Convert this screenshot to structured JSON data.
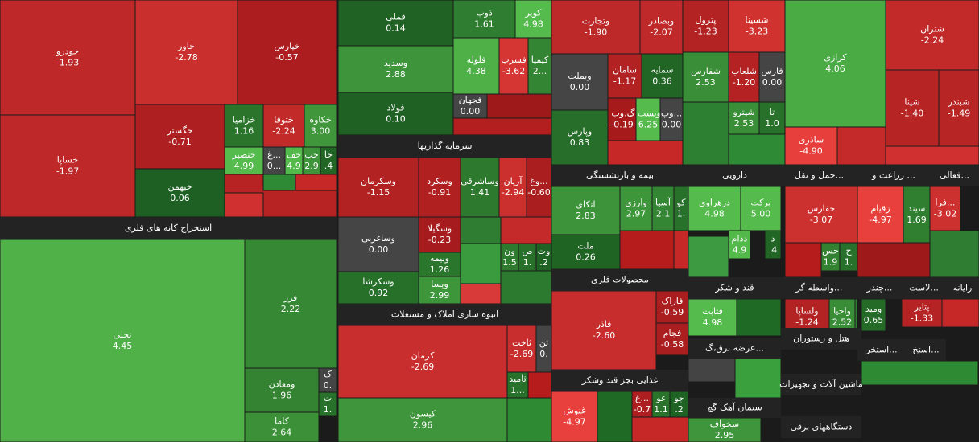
{
  "headers": [
    "استخراج کانه های فلزی",
    "سرمایه گذاریها",
    "انبوه سازی املاک و مستغلات",
    "بیمه و بازنشستگی",
    "محصولات فلزی",
    "غذایی بجز قند وشکر",
    "دارویی",
    "قند و شکر",
    "عرضه برق،گ...",
    "سیمان آهک گچ",
    "حمل و نقل...",
    "واسطه گر...",
    "هتل و رستوران",
    "ماشین آلات و تجهیزات",
    "دستگاههای برقی",
    "زراعت و ...",
    "فعالی...",
    "چندر...",
    "لاست...",
    "رایانه",
    "استخر...",
    "استخ..."
  ],
  "tiles": [
    {
      "label": "خودرو",
      "change": "-1.93"
    },
    {
      "label": "خساپا",
      "change": "-1.97"
    },
    {
      "label": "خاور",
      "change": "-2.78"
    },
    {
      "label": "خپارس",
      "change": "-0.57"
    },
    {
      "label": "خگستر",
      "change": "-0.71"
    },
    {
      "label": "خبهمن",
      "change": "0.06"
    },
    {
      "label": "خزامیا",
      "change": "1.16"
    },
    {
      "label": "ختوقا",
      "change": "-2.24"
    },
    {
      "label": "خکاوه",
      "change": "3.00"
    },
    {
      "label": "خنصیر",
      "change": "4.99"
    },
    {
      "label": "غ...",
      "change": "0..."
    },
    {
      "label": "خف",
      "change": "4.9"
    },
    {
      "label": "خب",
      "change": "2.9"
    },
    {
      "label": "خا",
      "change": ".4"
    },
    {
      "label": "تجلی",
      "change": "4.45"
    },
    {
      "label": "فزر",
      "change": "2.22"
    },
    {
      "label": "ومعادن",
      "change": "1.96"
    },
    {
      "label": "کاما",
      "change": "2.64"
    },
    {
      "label": "ک",
      "change": "0."
    },
    {
      "label": "ت",
      "change": "1."
    },
    {
      "label": "فملی",
      "change": "0.14"
    },
    {
      "label": "وسدید",
      "change": "2.88"
    },
    {
      "label": "فولاد",
      "change": "0.10"
    },
    {
      "label": "ذوب",
      "change": "1.61"
    },
    {
      "label": "کویر",
      "change": "4.98"
    },
    {
      "label": "فلوله",
      "change": "4.38"
    },
    {
      "label": "فسرب",
      "change": "-3.62"
    },
    {
      "label": "کیمیا",
      "change": "2..."
    },
    {
      "label": "فجهان",
      "change": "0.00"
    },
    {
      "label": "وسکرمان",
      "change": "-1.15"
    },
    {
      "label": "وسکرد",
      "change": "-0.91"
    },
    {
      "label": "وساشرقی",
      "change": "1.41"
    },
    {
      "label": "آریان",
      "change": "-2.94"
    },
    {
      "label": "وغ...",
      "change": "-0.60"
    },
    {
      "label": "وساغربی",
      "change": "0.00"
    },
    {
      "label": "وسکرشا",
      "change": "0.92"
    },
    {
      "label": "وسگیلا",
      "change": "-0.23"
    },
    {
      "label": "وبیمه",
      "change": "1.26"
    },
    {
      "label": "ویسا",
      "change": "2.99"
    },
    {
      "label": "ون",
      "change": "1.5"
    },
    {
      "label": "ص",
      "change": "1."
    },
    {
      "label": "وت",
      "change": ".2"
    },
    {
      "label": "کرمان",
      "change": "-2.69"
    },
    {
      "label": "کیسون",
      "change": "2.96"
    },
    {
      "label": "ثاخت",
      "change": "-2.69"
    },
    {
      "label": "ثن",
      "change": "0."
    },
    {
      "label": "ثامید",
      "change": "1..."
    },
    {
      "label": "وتجارت",
      "change": "-1.90"
    },
    {
      "label": "وبصادر",
      "change": "-2.07"
    },
    {
      "label": "وبملت",
      "change": "0.00"
    },
    {
      "label": "وپارس",
      "change": "0.83"
    },
    {
      "label": "سامان",
      "change": "-1.17"
    },
    {
      "label": "سمایه",
      "change": "0.36"
    },
    {
      "label": "وب...",
      "change": "-0.19"
    },
    {
      "label": "وپست گ...",
      "change": "6.25"
    },
    {
      "label": "وپ...",
      "change": "0.00"
    },
    {
      "label": "اتکای",
      "change": "2.83"
    },
    {
      "label": "ملت",
      "change": "0.26"
    },
    {
      "label": "وارزی",
      "change": "2.97"
    },
    {
      "label": "آسیا",
      "change": "2.1"
    },
    {
      "label": "کو",
      "change": "1."
    },
    {
      "label": "فاذر",
      "change": "-2.60"
    },
    {
      "label": "فاراک",
      "change": "-0.59"
    },
    {
      "label": "فجام",
      "change": "-0.58"
    },
    {
      "label": "غنوش",
      "change": "-4.97"
    },
    {
      "label": "غ...",
      "change": "-0.7"
    },
    {
      "label": "غو",
      "change": "1.1"
    },
    {
      "label": "جو",
      "change": ".2"
    },
    {
      "label": "پترول",
      "change": "-1.23"
    },
    {
      "label": "شسینا",
      "change": "-3.23"
    },
    {
      "label": "شفارس",
      "change": "2.53"
    },
    {
      "label": "شلعاب",
      "change": "-1.20"
    },
    {
      "label": "فارس",
      "change": "0.00"
    },
    {
      "label": "شپترو",
      "change": "2.53"
    },
    {
      "label": "تا",
      "change": "1.0"
    },
    {
      "label": "دزهراوی",
      "change": "4.98"
    },
    {
      "label": "برکت",
      "change": "5.00"
    },
    {
      "label": "ددام",
      "change": "4.9"
    },
    {
      "label": "د",
      "change": ".4"
    },
    {
      "label": "قثابت",
      "change": "4.98"
    },
    {
      "label": "سخواف",
      "change": "2.95"
    },
    {
      "label": "کرازی",
      "change": "4.06"
    },
    {
      "label": "ساذری",
      "change": "-4.90"
    },
    {
      "label": "حفارس",
      "change": "-3.07"
    },
    {
      "label": "حس",
      "change": "1.9"
    },
    {
      "label": "ح",
      "change": "1."
    },
    {
      "label": "ولساپا",
      "change": "-1.24"
    },
    {
      "label": "واحیا",
      "change": "2.52"
    },
    {
      "label": "شتران",
      "change": "-2.24"
    },
    {
      "label": "شینا",
      "change": "-1.40"
    },
    {
      "label": "شبندر",
      "change": "-1.49"
    },
    {
      "label": "زقیام",
      "change": "-4.97"
    },
    {
      "label": "سیند",
      "change": "1.69"
    },
    {
      "label": "فرا...",
      "change": "-3.02"
    },
    {
      "label": "ومید",
      "change": "0.65"
    },
    {
      "label": "پتایر",
      "change": "-1.33"
    }
  ]
}
